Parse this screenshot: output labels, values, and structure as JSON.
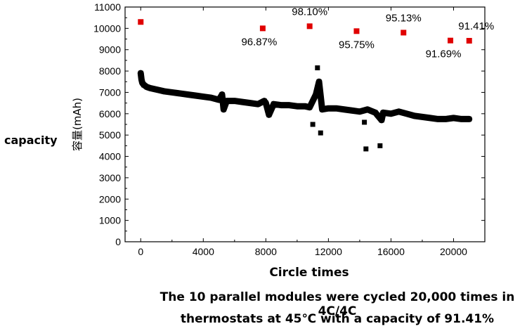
{
  "side_label": "capacity",
  "caption_line1": "The 10 parallel modules were cycled 20,000 times in 4C/4C",
  "caption_line2": "thermostats at 45℃ with a capacity of 91.41%",
  "colors": {
    "capacity_points": "#000000",
    "retention_points": "#e00000",
    "axis": "#000000"
  },
  "chart_data": {
    "type": "scatter",
    "xlabel": "Circle times",
    "ylabel": "容量(mAh)",
    "xlim": [
      -1000,
      22000
    ],
    "ylim": [
      0,
      11000
    ],
    "x_ticks": [
      0,
      4000,
      8000,
      12000,
      16000,
      20000
    ],
    "y_ticks": [
      0,
      1000,
      2000,
      3000,
      4000,
      5000,
      6000,
      7000,
      8000,
      9000,
      10000,
      11000
    ],
    "series": [
      {
        "points": [
          [
            0,
            7900
          ],
          [
            50,
            7600
          ],
          [
            100,
            7450
          ],
          [
            200,
            7350
          ],
          [
            400,
            7250
          ],
          [
            600,
            7200
          ],
          [
            900,
            7150
          ],
          [
            1200,
            7100
          ],
          [
            1500,
            7050
          ],
          [
            2000,
            7000
          ],
          [
            2500,
            6950
          ],
          [
            3000,
            6900
          ],
          [
            3500,
            6850
          ],
          [
            4000,
            6800
          ],
          [
            4500,
            6750
          ],
          [
            5000,
            6650
          ],
          [
            5200,
            6900
          ],
          [
            5300,
            6200
          ],
          [
            5500,
            6600
          ],
          [
            6000,
            6600
          ],
          [
            6500,
            6550
          ],
          [
            7000,
            6500
          ],
          [
            7500,
            6450
          ],
          [
            7900,
            6600
          ],
          [
            8000,
            6500
          ],
          [
            8200,
            5950
          ],
          [
            8500,
            6450
          ],
          [
            9000,
            6400
          ],
          [
            9500,
            6400
          ],
          [
            10000,
            6350
          ],
          [
            10500,
            6350
          ],
          [
            10800,
            6300
          ],
          [
            11000,
            5500
          ],
          [
            11200,
            6900
          ],
          [
            11300,
            8150
          ],
          [
            11400,
            7500
          ],
          [
            11500,
            5100
          ],
          [
            11600,
            6200
          ],
          [
            12000,
            6250
          ],
          [
            12500,
            6250
          ],
          [
            13000,
            6200
          ],
          [
            13500,
            6150
          ],
          [
            14000,
            6100
          ],
          [
            14300,
            5600
          ],
          [
            14400,
            4350
          ],
          [
            14500,
            6200
          ],
          [
            15000,
            6050
          ],
          [
            15300,
            4500
          ],
          [
            15400,
            5700
          ],
          [
            15500,
            6050
          ],
          [
            16000,
            6000
          ],
          [
            16500,
            6100
          ],
          [
            17000,
            6000
          ],
          [
            17500,
            5900
          ],
          [
            18000,
            5850
          ],
          [
            18500,
            5800
          ],
          [
            19000,
            5750
          ],
          [
            19500,
            5750
          ],
          [
            20000,
            5800
          ],
          [
            20500,
            5750
          ],
          [
            21000,
            5750
          ]
        ]
      },
      {
        "points": [
          [
            0,
            10300
          ],
          [
            7800,
            10000
          ],
          [
            10800,
            10100
          ],
          [
            13800,
            9870
          ],
          [
            16800,
            9800
          ],
          [
            19800,
            9430
          ],
          [
            21000,
            9420
          ]
        ],
        "labels": [
          "",
          "96.87%",
          "98.10%",
          "95.75%",
          "95.13%",
          "91.69%",
          "91.41%"
        ]
      }
    ]
  }
}
